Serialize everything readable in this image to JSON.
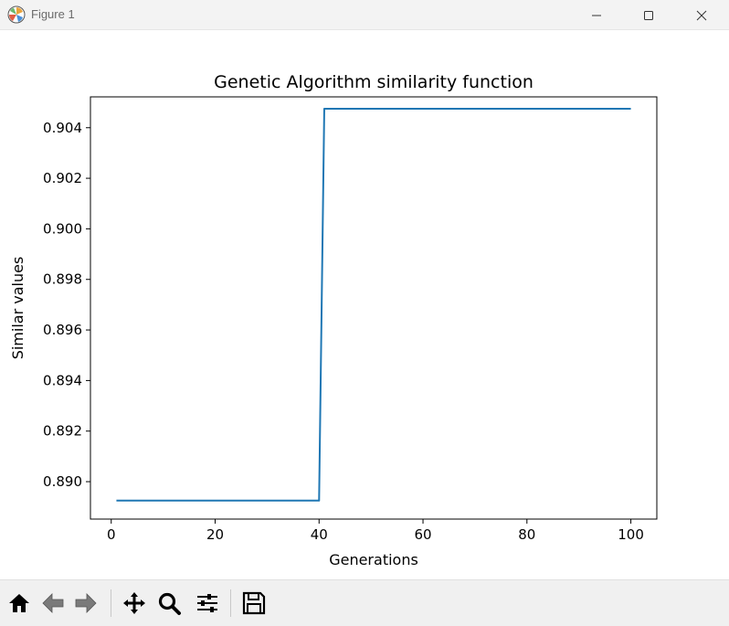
{
  "window": {
    "title": "Figure 1",
    "icons": {
      "app": "matplotlib-logo-icon",
      "minimize": "minimize-icon",
      "maximize": "maximize-icon",
      "close": "close-icon"
    }
  },
  "toolbar": {
    "buttons": [
      {
        "name": "home-button",
        "icon": "home-icon"
      },
      {
        "name": "back-button",
        "icon": "arrow-left-icon"
      },
      {
        "name": "forward-button",
        "icon": "arrow-right-icon"
      },
      {
        "name": "pan-button",
        "icon": "move-icon"
      },
      {
        "name": "zoom-button",
        "icon": "magnifier-icon"
      },
      {
        "name": "configure-subplots-button",
        "icon": "sliders-icon"
      },
      {
        "name": "save-button",
        "icon": "floppy-disk-icon"
      }
    ]
  },
  "chart_data": {
    "type": "line",
    "title": "Genetic Algorithm similarity function",
    "xlabel": "Generations",
    "ylabel": "Similar values",
    "xlim": [
      -4.0,
      105.0
    ],
    "ylim": [
      0.88852,
      0.90522
    ],
    "xticks": [
      0,
      20,
      40,
      60,
      80,
      100
    ],
    "yticks": [
      0.89,
      0.892,
      0.894,
      0.896,
      0.898,
      0.9,
      0.902,
      0.904
    ],
    "ytick_labels": [
      "0.890",
      "0.892",
      "0.894",
      "0.896",
      "0.898",
      "0.900",
      "0.902",
      "0.904"
    ],
    "grid": false,
    "line_color": "#1f77b4",
    "series": [
      {
        "x": [
          1,
          40,
          41,
          100
        ],
        "values": [
          0.88925,
          0.88925,
          0.90475,
          0.90475
        ]
      }
    ]
  }
}
